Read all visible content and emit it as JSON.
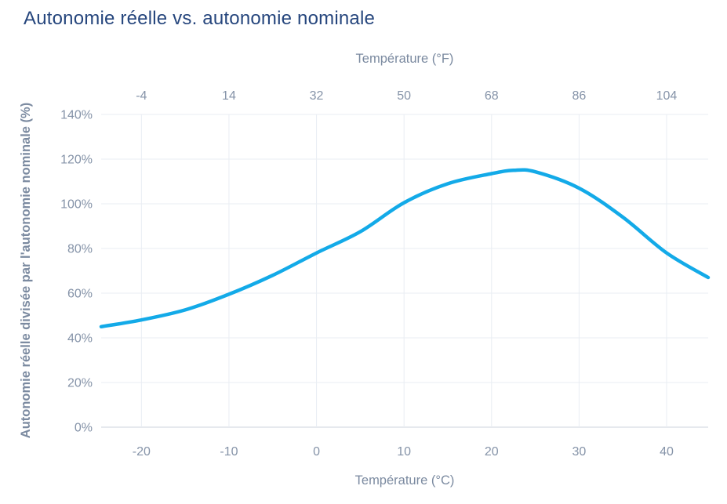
{
  "page": {
    "title": "Autonomie réelle vs. autonomie nominale"
  },
  "colors": {
    "title": "#26467d",
    "axis_text": "#7b8aa0",
    "tick_text": "#8593a8",
    "gridline": "#e9edf3",
    "axis_line": "#ccd3dd",
    "curve": "#13aae8",
    "background": "#ffffff"
  },
  "chart_data": {
    "type": "line",
    "title": "Autonomie réelle vs. autonomie nominale",
    "x_axis_top": {
      "label": "Température (°F)",
      "tick_labels": [
        "-4",
        "14",
        "32",
        "50",
        "68",
        "86",
        "104"
      ],
      "tick_values_f": [
        -4,
        14,
        32,
        50,
        68,
        86,
        104
      ]
    },
    "x_axis_bottom": {
      "label": "Température (°C)",
      "tick_labels": [
        "-20",
        "-10",
        "0",
        "10",
        "20",
        "30",
        "40"
      ],
      "tick_values_c": [
        -20,
        -10,
        0,
        10,
        20,
        30,
        40
      ],
      "range_c": [
        -24.6,
        44.75
      ]
    },
    "y_axis": {
      "label": "Autonomie réelle divisée par l'autonomie nominale (%)",
      "tick_labels": [
        "0%",
        "20%",
        "40%",
        "60%",
        "80%",
        "100%",
        "120%",
        "140%"
      ],
      "tick_values": [
        0,
        20,
        40,
        60,
        80,
        100,
        120,
        140
      ],
      "range": [
        0,
        140
      ]
    },
    "grid": true,
    "legend": "none",
    "series": [
      {
        "color": "#13aae8",
        "points_c_pct": [
          [
            -24.6,
            45
          ],
          [
            -20,
            48
          ],
          [
            -15,
            52.5
          ],
          [
            -10,
            59.5
          ],
          [
            -5,
            68
          ],
          [
            0,
            78
          ],
          [
            5,
            87.5
          ],
          [
            10,
            100.5
          ],
          [
            15,
            109
          ],
          [
            20,
            113.5
          ],
          [
            22.5,
            115
          ],
          [
            25,
            114.3
          ],
          [
            30,
            107
          ],
          [
            35,
            94
          ],
          [
            40,
            78
          ],
          [
            44.75,
            67
          ]
        ]
      }
    ]
  }
}
